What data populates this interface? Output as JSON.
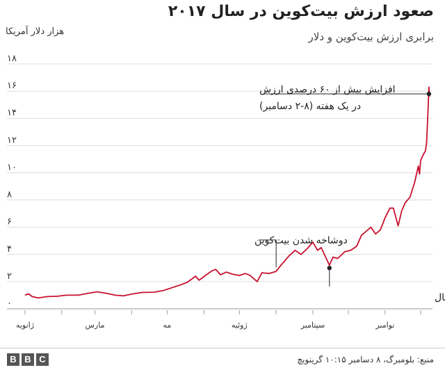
{
  "header": {
    "title": "صعود ارزش بیت‌کوین در سال ۲۰۱۷",
    "subtitle": "برابری ارزش بیت‌کوین و دلار",
    "unit": "هزار دلار آمریکا"
  },
  "footer": {
    "source": "منبع: بلومبرگ، ۸ دسامبر ۱۰:۱۵ گرینویچ",
    "logo": [
      "B",
      "B",
      "C"
    ]
  },
  "colors": {
    "line": "#c8102e",
    "grid": "#dddddd",
    "annotation": "#222222"
  },
  "chart_data": {
    "type": "line",
    "title": "صعود ارزش بیت‌کوین در سال ۲۰۱۷",
    "ylabel": "هزار دلار آمریکا",
    "ylim": [
      0,
      18
    ],
    "yticks": [
      0,
      2,
      4,
      6,
      8,
      10,
      12,
      14,
      16,
      18
    ],
    "ytick_labels": [
      "۰",
      "۲",
      "۴",
      "۶",
      "۸",
      "۱۰",
      "۱۲",
      "۱۴",
      "۱۶",
      "۱۸"
    ],
    "xlim": [
      "2017-01-01",
      "2017-12-11"
    ],
    "month_ticks": [
      {
        "date": "2017-01-01",
        "label": "ژانویه"
      },
      {
        "date": "2017-02-01",
        "label": ""
      },
      {
        "date": "2017-03-01",
        "label": "مارس"
      },
      {
        "date": "2017-04-01",
        "label": ""
      },
      {
        "date": "2017-05-01",
        "label": "مه"
      },
      {
        "date": "2017-06-01",
        "label": ""
      },
      {
        "date": "2017-07-01",
        "label": "ژوئیه"
      },
      {
        "date": "2017-08-01",
        "label": ""
      },
      {
        "date": "2017-09-01",
        "label": "سپتامبر"
      },
      {
        "date": "2017-10-01",
        "label": ""
      },
      {
        "date": "2017-11-01",
        "label": "نوامبر"
      },
      {
        "date": "2017-12-01",
        "label": ""
      }
    ],
    "grid": true,
    "series": [
      {
        "points": [
          [
            "2017-01-01",
            1.0
          ],
          [
            "2017-01-04",
            1.1
          ],
          [
            "2017-01-07",
            0.9
          ],
          [
            "2017-01-12",
            0.8
          ],
          [
            "2017-01-20",
            0.9
          ],
          [
            "2017-01-28",
            0.92
          ],
          [
            "2017-02-05",
            1.0
          ],
          [
            "2017-02-15",
            1.0
          ],
          [
            "2017-02-24",
            1.15
          ],
          [
            "2017-03-03",
            1.25
          ],
          [
            "2017-03-10",
            1.15
          ],
          [
            "2017-03-18",
            1.0
          ],
          [
            "2017-03-25",
            0.95
          ],
          [
            "2017-04-01",
            1.08
          ],
          [
            "2017-04-10",
            1.2
          ],
          [
            "2017-04-20",
            1.22
          ],
          [
            "2017-04-28",
            1.35
          ],
          [
            "2017-05-05",
            1.55
          ],
          [
            "2017-05-12",
            1.75
          ],
          [
            "2017-05-18",
            1.95
          ],
          [
            "2017-05-25",
            2.4
          ],
          [
            "2017-05-28",
            2.1
          ],
          [
            "2017-06-03",
            2.5
          ],
          [
            "2017-06-08",
            2.8
          ],
          [
            "2017-06-11",
            2.9
          ],
          [
            "2017-06-15",
            2.5
          ],
          [
            "2017-06-20",
            2.7
          ],
          [
            "2017-06-25",
            2.55
          ],
          [
            "2017-07-01",
            2.45
          ],
          [
            "2017-07-06",
            2.6
          ],
          [
            "2017-07-10",
            2.45
          ],
          [
            "2017-07-16",
            2.0
          ],
          [
            "2017-07-20",
            2.65
          ],
          [
            "2017-07-26",
            2.6
          ],
          [
            "2017-08-01",
            2.75
          ],
          [
            "2017-08-05",
            3.2
          ],
          [
            "2017-08-12",
            3.9
          ],
          [
            "2017-08-17",
            4.3
          ],
          [
            "2017-08-22",
            4.0
          ],
          [
            "2017-08-27",
            4.4
          ],
          [
            "2017-09-01",
            4.9
          ],
          [
            "2017-09-05",
            4.3
          ],
          [
            "2017-09-08",
            4.5
          ],
          [
            "2017-09-15",
            3.2
          ],
          [
            "2017-09-18",
            3.8
          ],
          [
            "2017-09-22",
            3.7
          ],
          [
            "2017-09-28",
            4.2
          ],
          [
            "2017-10-03",
            4.3
          ],
          [
            "2017-10-08",
            4.6
          ],
          [
            "2017-10-12",
            5.4
          ],
          [
            "2017-10-16",
            5.7
          ],
          [
            "2017-10-20",
            6.0
          ],
          [
            "2017-10-24",
            5.5
          ],
          [
            "2017-10-28",
            5.8
          ],
          [
            "2017-11-01",
            6.7
          ],
          [
            "2017-11-05",
            7.4
          ],
          [
            "2017-11-08",
            7.4
          ],
          [
            "2017-11-12",
            6.1
          ],
          [
            "2017-11-15",
            7.2
          ],
          [
            "2017-11-18",
            7.8
          ],
          [
            "2017-11-22",
            8.2
          ],
          [
            "2017-11-26",
            9.3
          ],
          [
            "2017-11-29",
            10.5
          ],
          [
            "2017-11-30",
            9.9
          ],
          [
            "2017-12-01",
            10.9
          ],
          [
            "2017-12-03",
            11.3
          ],
          [
            "2017-12-05",
            11.6
          ],
          [
            "2017-12-06",
            12.2
          ],
          [
            "2017-12-07",
            14.1
          ],
          [
            "2017-12-08",
            16.3
          ],
          [
            "2017-12-08T12:00",
            15.6
          ]
        ]
      }
    ],
    "annotations": [
      {
        "text": [
          "افزایش بیش از ۶۰ درصدی ارزش",
          "در یک هفته (۸-۲ دسامبر)"
        ],
        "date": "2017-12-08",
        "value": 15.8
      },
      {
        "text": [
          "دوشاخه شدن بیت‌کوین"
        ],
        "date": "2017-08-01",
        "value": 2.75
      },
      {
        "text": [
          "مقابله چین با ارزهای دیجیتال"
        ],
        "date": "2017-09-15",
        "value": 3.0
      }
    ]
  }
}
